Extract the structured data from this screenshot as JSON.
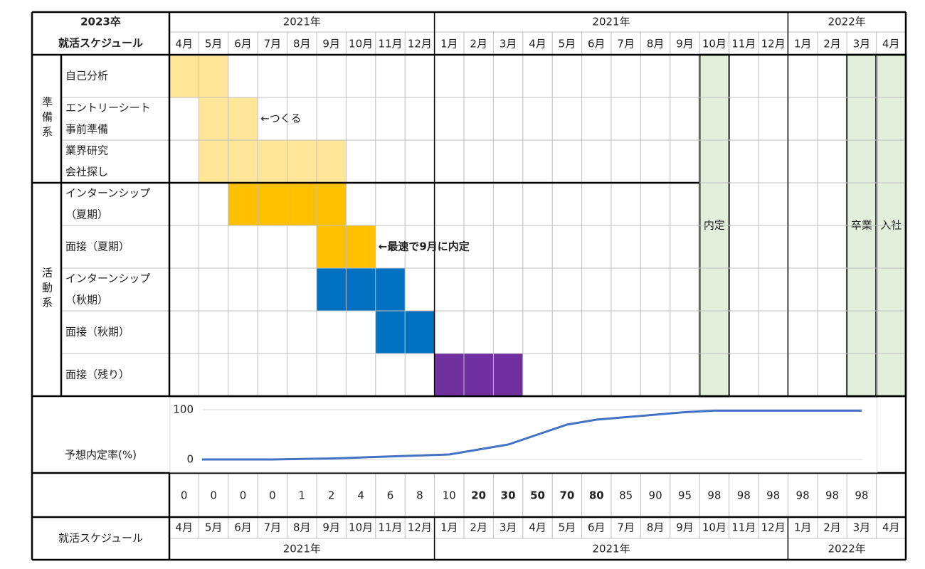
{
  "header": {
    "title": [
      "2023卒",
      "就活スケジュール"
    ],
    "years": [
      {
        "label": "2021年",
        "span": [
          0,
          8
        ]
      },
      {
        "label": "2021年",
        "span": [
          9,
          20
        ]
      },
      {
        "label": "2022年",
        "span": [
          21,
          24
        ]
      }
    ],
    "months": [
      "4月",
      "5月",
      "6月",
      "7月",
      "8月",
      "9月",
      "10月",
      "11月",
      "12月",
      "1月",
      "2月",
      "3月",
      "4月",
      "5月",
      "6月",
      "7月",
      "8月",
      "9月",
      "10月",
      "11月",
      "12月",
      "1月",
      "2月",
      "3月",
      "4月"
    ]
  },
  "groups": [
    {
      "label": "準備系",
      "rows": [
        0,
        2
      ]
    },
    {
      "label": "活動系",
      "rows": [
        3,
        7
      ]
    }
  ],
  "rows": [
    {
      "label": [
        "自己分析"
      ],
      "span": [
        0,
        1
      ],
      "color": "#ffe699"
    },
    {
      "label": [
        "エントリーシート",
        "事前準備"
      ],
      "span": [
        1,
        2
      ],
      "color": "#ffe699"
    },
    {
      "label": [
        "業界研究",
        "会社探し"
      ],
      "span": [
        1,
        5
      ],
      "color": "#ffe699"
    },
    {
      "label": [
        "インターンシップ",
        "（夏期）"
      ],
      "span": [
        2,
        5
      ],
      "color": "#ffc000"
    },
    {
      "label": [
        "面接（夏期）"
      ],
      "span": [
        5,
        6
      ],
      "color": "#ffc000"
    },
    {
      "label": [
        "インターンシップ",
        "（秋期）"
      ],
      "span": [
        5,
        7
      ],
      "color": "#0070c0"
    },
    {
      "label": [
        "面接（秋期）"
      ],
      "span": [
        7,
        8
      ],
      "color": "#0070c0"
    },
    {
      "label": [
        "面接（残り）"
      ],
      "span": [
        9,
        11
      ],
      "color": "#7030a0"
    }
  ],
  "annotations": [
    {
      "text": "←つくる",
      "row": 1,
      "col": 3,
      "color": "#222222"
    },
    {
      "text": "←最速で9月に内定",
      "row": 4,
      "col": 7,
      "color": "#e00000"
    }
  ],
  "milestones": [
    {
      "label": "内定",
      "col": 18
    },
    {
      "label": "卒業",
      "col": 23
    },
    {
      "label": "入社",
      "col": 24
    }
  ],
  "milestone_color": "#e2efda",
  "rate": {
    "label": "予想内定率(%)",
    "values": [
      0,
      0,
      0,
      0,
      1,
      2,
      4,
      6,
      8,
      10,
      20,
      30,
      50,
      70,
      80,
      85,
      90,
      95,
      98,
      98,
      98,
      98,
      98,
      98
    ],
    "ylim": [
      0,
      100
    ],
    "yticks": [
      0,
      100
    ],
    "color": "#4472c4",
    "highlighted": [
      10,
      11,
      12,
      13,
      14
    ],
    "highlight_color": "#e00000"
  },
  "footer": {
    "label": "就活スケジュール"
  }
}
